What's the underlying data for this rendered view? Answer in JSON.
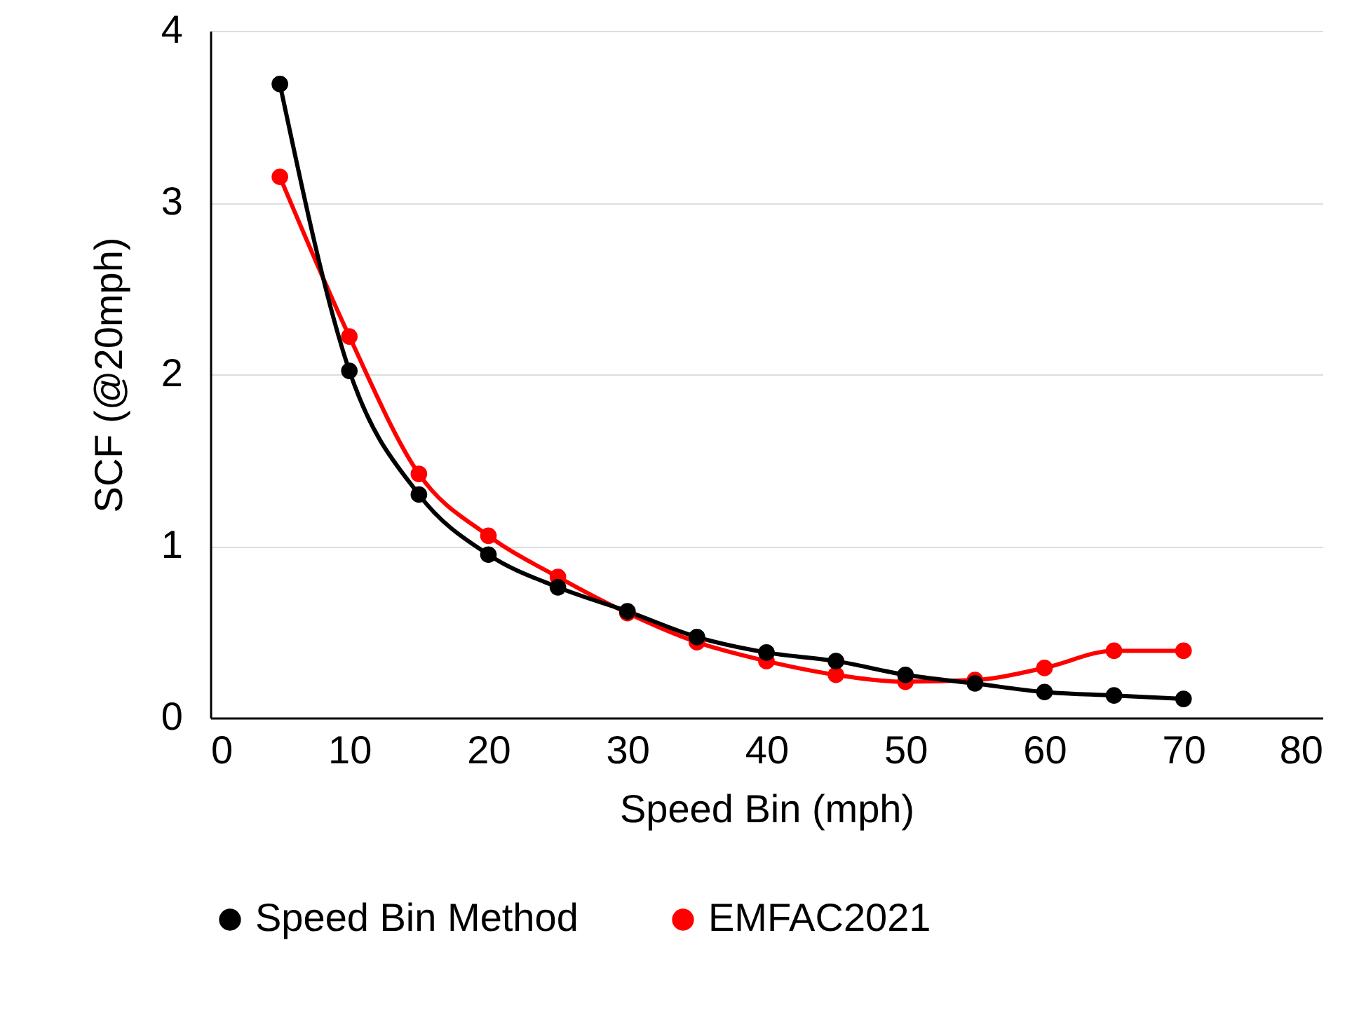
{
  "chart_data": {
    "type": "line",
    "xlabel": "Speed Bin (mph)",
    "ylabel": "SCF (@20mph)",
    "x": [
      5,
      10,
      15,
      20,
      25,
      30,
      35,
      40,
      45,
      50,
      55,
      60,
      65,
      70
    ],
    "series": [
      {
        "name": "Speed Bin Method",
        "color": "#000000",
        "values": [
          3.69,
          2.02,
          1.3,
          0.95,
          0.76,
          0.62,
          0.47,
          0.38,
          0.33,
          0.25,
          0.2,
          0.15,
          0.13,
          0.11
        ]
      },
      {
        "name": "EMFAC2021",
        "color": "#ff0000",
        "values": [
          3.15,
          2.22,
          1.42,
          1.06,
          0.82,
          0.61,
          0.44,
          0.33,
          0.25,
          0.21,
          0.22,
          0.29,
          0.39,
          0.39
        ]
      }
    ],
    "xlim": [
      0,
      80
    ],
    "xticks": [
      0,
      10,
      20,
      30,
      40,
      50,
      60,
      70,
      80
    ],
    "ylim": [
      0,
      4
    ],
    "yticks": [
      0,
      1,
      2,
      3,
      4
    ],
    "grid": "y",
    "legend": "bottom",
    "marker": "circle",
    "line_style": "solid"
  }
}
